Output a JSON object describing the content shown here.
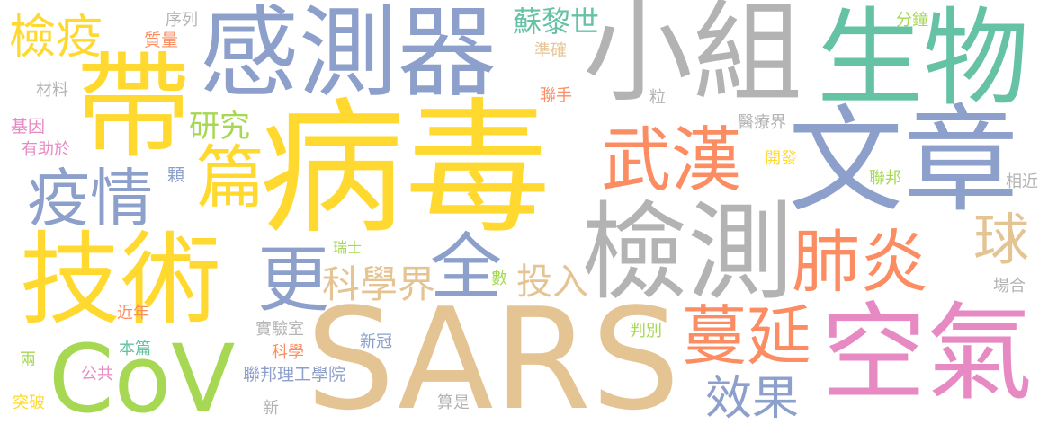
{
  "palette": {
    "yellow": "#ffd92f",
    "blue": "#8da0cb",
    "gray": "#b3b3b3",
    "green": "#66c2a5",
    "orange": "#fc8d62",
    "lime": "#a6d854",
    "tan": "#e5c494",
    "pink": "#e78ac3"
  },
  "words": [
    {
      "text": "病毒",
      "color": "yellow"
    },
    {
      "text": "SARS",
      "color": "tan"
    },
    {
      "text": "文章",
      "color": "blue"
    },
    {
      "text": "小組",
      "color": "gray"
    },
    {
      "text": "生物",
      "color": "green"
    },
    {
      "text": "感測器",
      "color": "blue"
    },
    {
      "text": "帶",
      "color": "yellow"
    },
    {
      "text": "技術",
      "color": "yellow"
    },
    {
      "text": "檢測",
      "color": "gray"
    },
    {
      "text": "空氣",
      "color": "pink"
    },
    {
      "text": "CoV",
      "color": "lime"
    },
    {
      "text": "武漢",
      "color": "orange"
    },
    {
      "text": "肺炎",
      "color": "orange"
    },
    {
      "text": "蔓延",
      "color": "orange"
    },
    {
      "text": "疫情",
      "color": "blue"
    },
    {
      "text": "篇",
      "color": "yellow"
    },
    {
      "text": "更",
      "color": "blue"
    },
    {
      "text": "全",
      "color": "blue"
    },
    {
      "text": "檢疫",
      "color": "yellow"
    },
    {
      "text": "球",
      "color": "tan"
    },
    {
      "text": "效果",
      "color": "blue"
    },
    {
      "text": "科學界",
      "color": "tan"
    },
    {
      "text": "投入",
      "color": "tan"
    },
    {
      "text": "研究",
      "color": "lime"
    },
    {
      "text": "蘇黎世",
      "color": "green"
    },
    {
      "text": "序列",
      "color": "gray"
    },
    {
      "text": "質量",
      "color": "orange"
    },
    {
      "text": "材料",
      "color": "gray"
    },
    {
      "text": "基因",
      "color": "pink"
    },
    {
      "text": "有助於",
      "color": "pink"
    },
    {
      "text": "顆",
      "color": "blue"
    },
    {
      "text": "準確",
      "color": "tan"
    },
    {
      "text": "聯手",
      "color": "orange"
    },
    {
      "text": "粒",
      "color": "gray"
    },
    {
      "text": "分鐘",
      "color": "lime"
    },
    {
      "text": "醫療界",
      "color": "gray"
    },
    {
      "text": "開發",
      "color": "yellow"
    },
    {
      "text": "聯邦",
      "color": "lime"
    },
    {
      "text": "相近",
      "color": "gray"
    },
    {
      "text": "瑞士",
      "color": "lime"
    },
    {
      "text": "數",
      "color": "lime"
    },
    {
      "text": "場合",
      "color": "gray"
    },
    {
      "text": "近年",
      "color": "orange"
    },
    {
      "text": "實驗室",
      "color": "gray"
    },
    {
      "text": "判別",
      "color": "lime"
    },
    {
      "text": "新冠",
      "color": "blue"
    },
    {
      "text": "本篇",
      "color": "green"
    },
    {
      "text": "科學",
      "color": "orange"
    },
    {
      "text": "兩",
      "color": "lime"
    },
    {
      "text": "公共",
      "color": "pink"
    },
    {
      "text": "聯邦理工學院",
      "color": "blue"
    },
    {
      "text": "突破",
      "color": "yellow"
    },
    {
      "text": "算是",
      "color": "gray"
    },
    {
      "text": "新",
      "color": "gray"
    }
  ]
}
